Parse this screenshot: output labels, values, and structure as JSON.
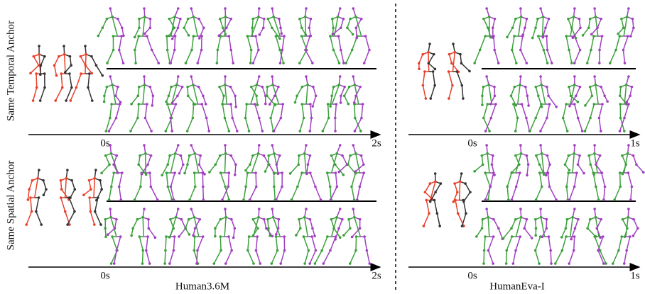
{
  "row_labels": [
    "Same Temporal Anchor",
    "Same Spatial Anchor"
  ],
  "panels": [
    {
      "title": "Human3.6M",
      "rows": [
        {
          "start": "0s",
          "end": "2s"
        },
        {
          "start": "0s",
          "end": "2s"
        }
      ]
    },
    {
      "title": "HumanEva-I",
      "rows": [
        {
          "start": "0s",
          "end": "1s"
        },
        {
          "start": "0s",
          "end": "1s"
        }
      ]
    }
  ]
}
